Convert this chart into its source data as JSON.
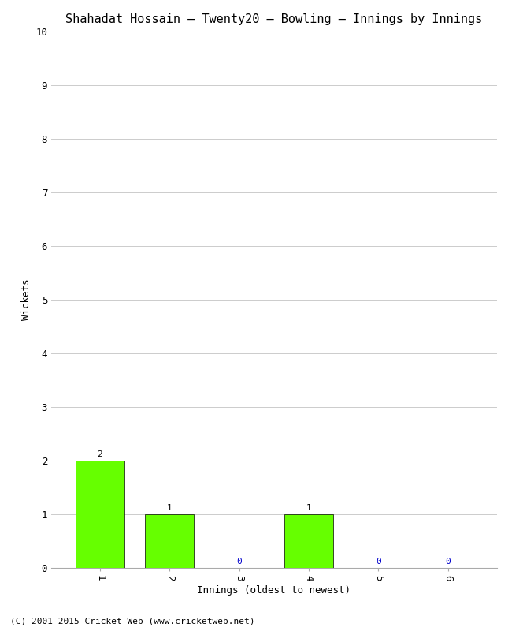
{
  "title": "Shahadat Hossain – Twenty20 – Bowling – Innings by Innings",
  "xlabel": "Innings (oldest to newest)",
  "ylabel": "Wickets",
  "innings": [
    1,
    2,
    3,
    4,
    5,
    6
  ],
  "wickets": [
    2,
    1,
    0,
    1,
    0,
    0
  ],
  "bar_color": "#66ff00",
  "bar_edge_color": "#000000",
  "zero_label_color": "#0000cc",
  "nonzero_label_color": "#000000",
  "ylim": [
    0,
    10
  ],
  "yticks": [
    0,
    1,
    2,
    3,
    4,
    5,
    6,
    7,
    8,
    9,
    10
  ],
  "background_color": "#ffffff",
  "grid_color": "#cccccc",
  "footer": "(C) 2001-2015 Cricket Web (www.cricketweb.net)",
  "title_fontsize": 11,
  "axis_label_fontsize": 9,
  "tick_fontsize": 9,
  "bar_label_fontsize": 8,
  "footer_fontsize": 8
}
